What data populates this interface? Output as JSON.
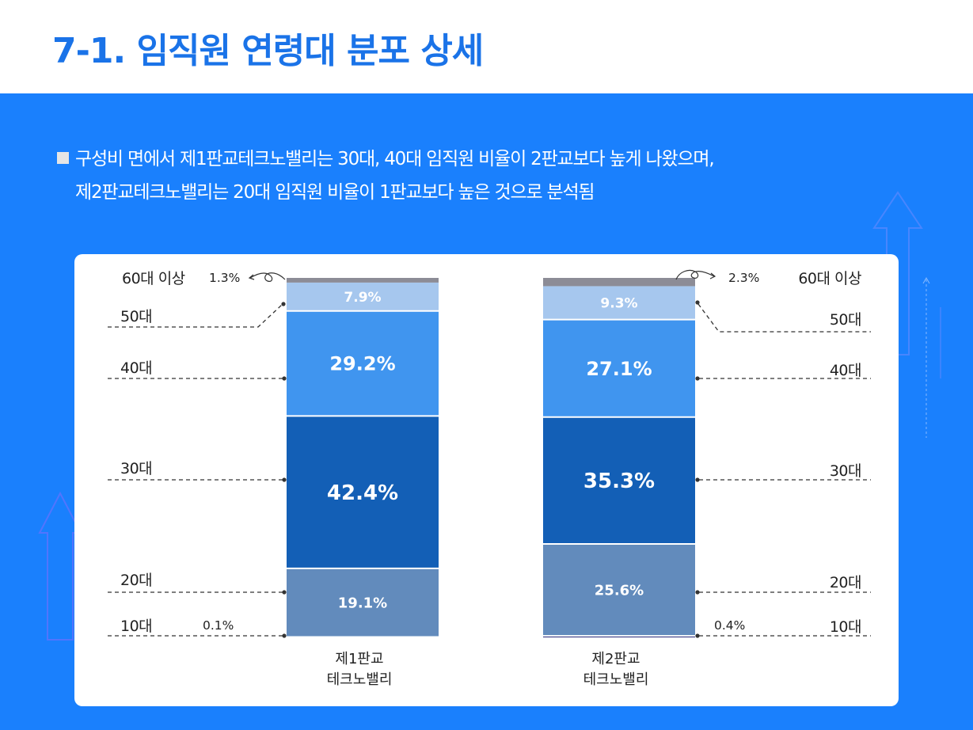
{
  "page": {
    "title": "7-1. 임직원 연령대 분포 상세",
    "summary": [
      "구성비 면에서 제1판교테크노밸리는 30대, 40대 임직원 비율이 2판교보다 높게 나왔으며,",
      "제2판교테크노밸리는 20대 임직원 비율이 1판교보다 높은 것으로 분석됨"
    ]
  },
  "colors": {
    "panel_bg": "#1a80fd",
    "age_10s": "#0a0a66",
    "age_20s": "#628bbc",
    "age_30s": "#135fb6",
    "age_40s": "#4095ef",
    "age_50s": "#a6c7ee",
    "age_60s": "#8c8c96"
  },
  "chart_data": {
    "type": "bar",
    "stacked": true,
    "normalized": true,
    "categories": [
      [
        "제1판교",
        "테크노밸리"
      ],
      [
        "제2판교",
        "테크노밸리"
      ]
    ],
    "series": [
      {
        "name": "10대",
        "values": [
          0.1,
          0.4
        ]
      },
      {
        "name": "20대",
        "values": [
          19.1,
          25.6
        ]
      },
      {
        "name": "30대",
        "values": [
          42.4,
          35.3
        ]
      },
      {
        "name": "40대",
        "values": [
          29.2,
          27.1
        ]
      },
      {
        "name": "50대",
        "values": [
          7.9,
          9.3
        ]
      },
      {
        "name": "60대 이상",
        "values": [
          1.3,
          2.3
        ]
      }
    ],
    "value_labels": [
      [
        "0.1%",
        "19.1%",
        "42.4%",
        "29.2%",
        "7.9%",
        "1.3%"
      ],
      [
        "0.4%",
        "25.6%",
        "35.3%",
        "27.1%",
        "9.3%",
        "2.3%"
      ]
    ],
    "ylim": [
      0,
      100
    ],
    "legend": "side labels"
  }
}
